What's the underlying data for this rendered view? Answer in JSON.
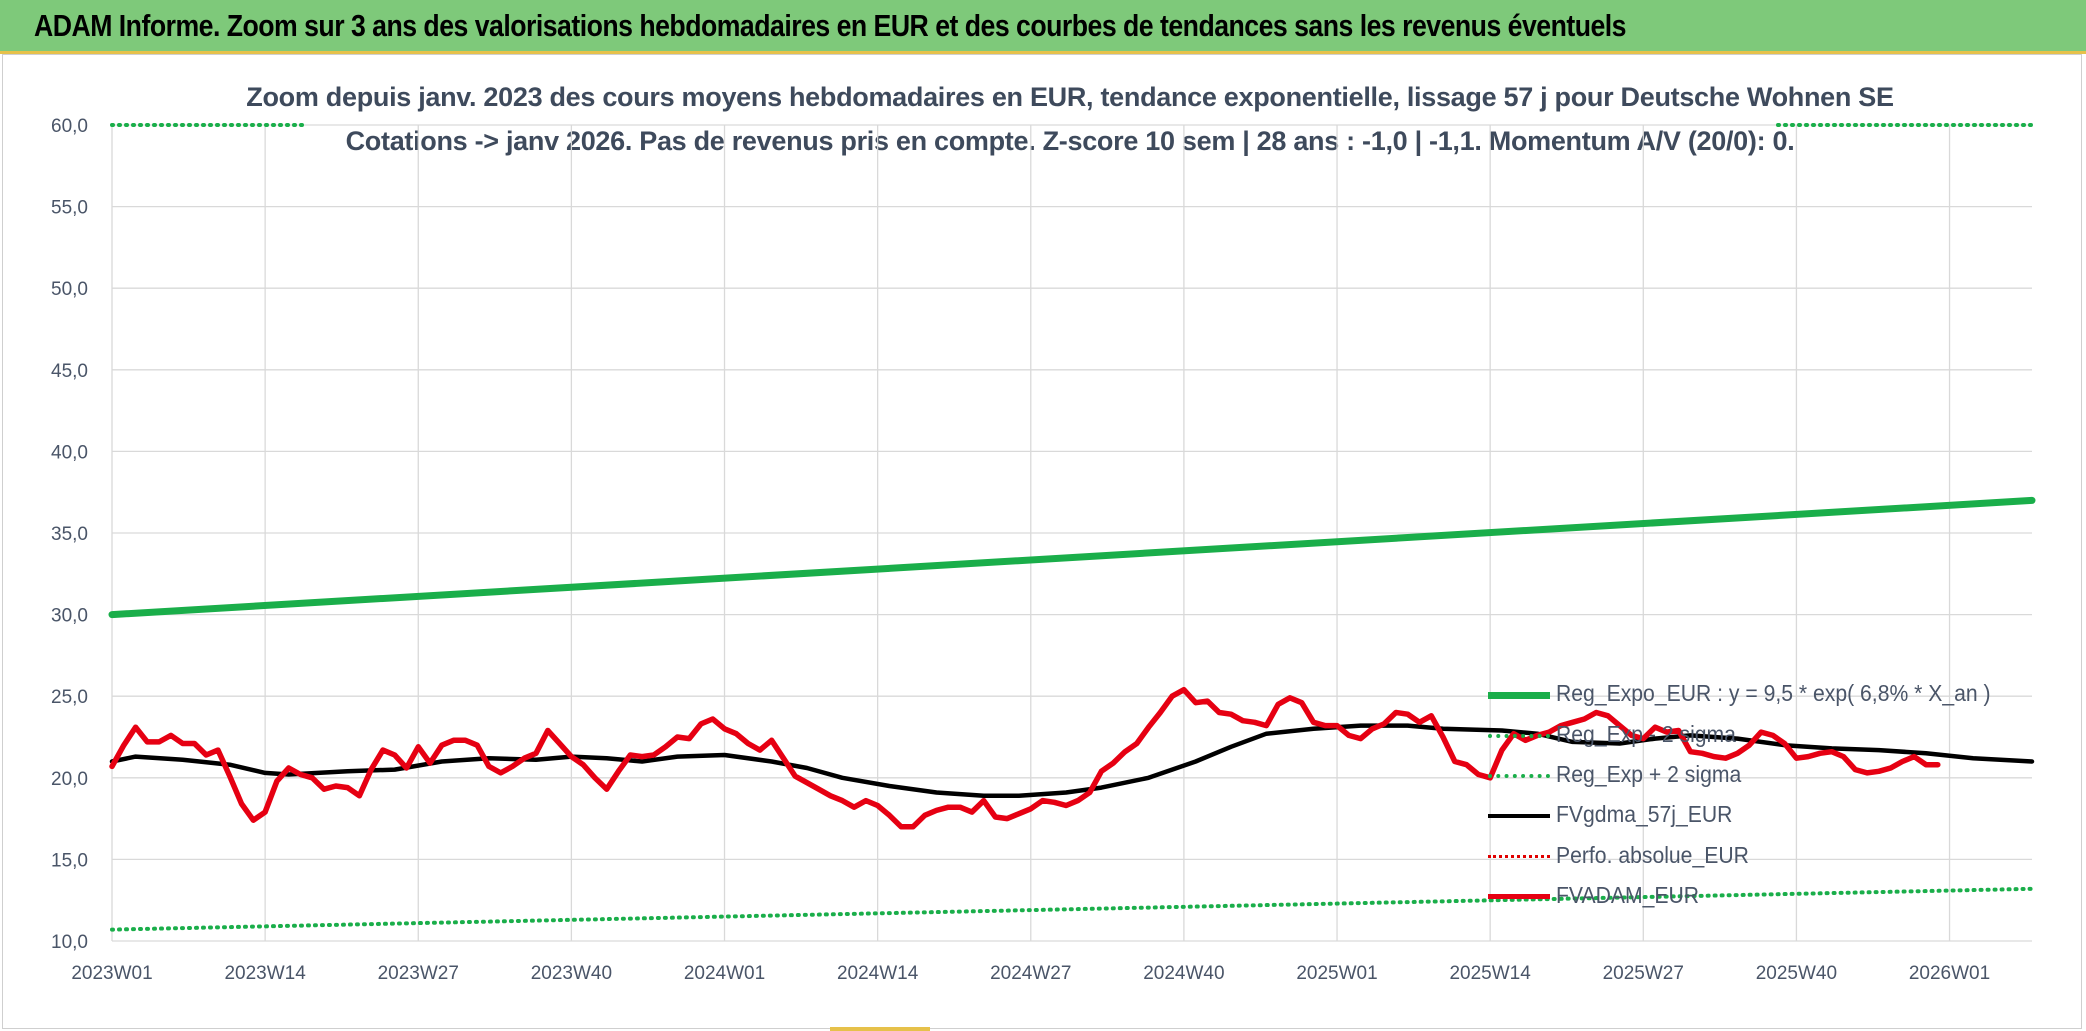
{
  "header": {
    "title": "ADAM Informe. Zoom sur 3 ans des valorisations hebdomadaires en EUR et des courbes de tendances sans les revenus éventuels"
  },
  "colors": {
    "header_bg": "#7ec97a",
    "reg_expo": "#1aae4a",
    "sigma": "#1aae4a",
    "fvgdma": "#000000",
    "perfo": "#e00000",
    "fvadam": "#e60012",
    "grid": "#d9d9d9"
  },
  "chart_data": {
    "type": "line",
    "title": "Zoom depuis janv. 2023 des cours moyens hebdomadaires en EUR, tendance exponentielle, lissage 57 j pour Deutsche Wohnen SE",
    "subtitle": "Cotations -> janv 2026. Pas de revenus pris en compte. Z-score 10 sem | 28 ans : -1,0 | -1,1. Momentum A/V (20/0): 0.",
    "xlabel": "",
    "ylabel": "",
    "ylim": [
      10,
      60
    ],
    "y_ticks": [
      "10,0",
      "15,0",
      "20,0",
      "25,0",
      "30,0",
      "35,0",
      "40,0",
      "45,0",
      "50,0",
      "55,0",
      "60,0"
    ],
    "x_ticks": [
      "2023W01",
      "2023W14",
      "2023W27",
      "2023W40",
      "2024W01",
      "2024W14",
      "2024W27",
      "2024W40",
      "2025W01",
      "2025W14",
      "2025W27",
      "2025W40",
      "2026W01"
    ],
    "n_weeks": 164,
    "grid": true,
    "legend_position": "right",
    "series": [
      {
        "name": "Reg_Expo_EUR : y = 9,5 * exp( 6,8% * X_an )",
        "style": "solid-thick-green",
        "points": [
          [
            0,
            30.0
          ],
          [
            163,
            37.0
          ]
        ]
      },
      {
        "name": "Reg_Exp - 2 sigma",
        "style": "dotted-green",
        "points": [
          [
            0,
            10.7
          ],
          [
            163,
            13.2
          ]
        ]
      },
      {
        "name": "Reg_Exp + 2 sigma",
        "style": "dotted-green",
        "points": [
          [
            0,
            60.0
          ],
          [
            163,
            60.0
          ]
        ]
      },
      {
        "name": "FVgdma_57j_EUR",
        "style": "solid-black",
        "points": [
          [
            0,
            21.0
          ],
          [
            2,
            21.3
          ],
          [
            6,
            21.1
          ],
          [
            10,
            20.8
          ],
          [
            13,
            20.3
          ],
          [
            15,
            20.2
          ],
          [
            20,
            20.4
          ],
          [
            24,
            20.5
          ],
          [
            28,
            21.0
          ],
          [
            32,
            21.2
          ],
          [
            36,
            21.1
          ],
          [
            39,
            21.3
          ],
          [
            42,
            21.2
          ],
          [
            45,
            21.0
          ],
          [
            48,
            21.3
          ],
          [
            52,
            21.4
          ],
          [
            56,
            21.0
          ],
          [
            59,
            20.6
          ],
          [
            62,
            20.0
          ],
          [
            66,
            19.5
          ],
          [
            70,
            19.1
          ],
          [
            74,
            18.9
          ],
          [
            77,
            18.9
          ],
          [
            81,
            19.1
          ],
          [
            84,
            19.4
          ],
          [
            88,
            20.0
          ],
          [
            92,
            21.0
          ],
          [
            95,
            21.9
          ],
          [
            98,
            22.7
          ],
          [
            102,
            23.0
          ],
          [
            106,
            23.2
          ],
          [
            110,
            23.2
          ],
          [
            113,
            23.0
          ],
          [
            118,
            22.9
          ],
          [
            121,
            22.7
          ],
          [
            124,
            22.2
          ],
          [
            128,
            22.1
          ],
          [
            131,
            22.4
          ],
          [
            134,
            22.6
          ],
          [
            138,
            22.4
          ],
          [
            142,
            22.0
          ],
          [
            146,
            21.8
          ],
          [
            150,
            21.7
          ],
          [
            154,
            21.5
          ],
          [
            158,
            21.2
          ],
          [
            163,
            21.0
          ]
        ]
      },
      {
        "name": "Perfo. absolue_EUR",
        "style": "dotted-red",
        "points": []
      },
      {
        "name": "FVADAM_EUR",
        "style": "solid-thick-red",
        "points": [
          [
            0,
            20.7
          ],
          [
            1,
            22.0
          ],
          [
            2,
            23.1
          ],
          [
            3,
            22.2
          ],
          [
            4,
            22.2
          ],
          [
            5,
            22.6
          ],
          [
            6,
            22.1
          ],
          [
            7,
            22.1
          ],
          [
            8,
            21.4
          ],
          [
            9,
            21.7
          ],
          [
            10,
            20.1
          ],
          [
            11,
            18.4
          ],
          [
            12,
            17.4
          ],
          [
            13,
            17.9
          ],
          [
            14,
            19.8
          ],
          [
            15,
            20.6
          ],
          [
            16,
            20.2
          ],
          [
            17,
            20.0
          ],
          [
            18,
            19.3
          ],
          [
            19,
            19.5
          ],
          [
            20,
            19.4
          ],
          [
            21,
            18.9
          ],
          [
            22,
            20.5
          ],
          [
            23,
            21.7
          ],
          [
            24,
            21.4
          ],
          [
            25,
            20.6
          ],
          [
            26,
            21.9
          ],
          [
            27,
            20.9
          ],
          [
            28,
            22.0
          ],
          [
            29,
            22.3
          ],
          [
            30,
            22.3
          ],
          [
            31,
            22.0
          ],
          [
            32,
            20.7
          ],
          [
            33,
            20.3
          ],
          [
            34,
            20.7
          ],
          [
            35,
            21.2
          ],
          [
            36,
            21.5
          ],
          [
            37,
            22.9
          ],
          [
            38,
            22.1
          ],
          [
            39,
            21.3
          ],
          [
            40,
            20.8
          ],
          [
            41,
            20.0
          ],
          [
            42,
            19.3
          ],
          [
            43,
            20.4
          ],
          [
            44,
            21.4
          ],
          [
            45,
            21.3
          ],
          [
            46,
            21.4
          ],
          [
            47,
            21.9
          ],
          [
            48,
            22.5
          ],
          [
            49,
            22.4
          ],
          [
            50,
            23.3
          ],
          [
            51,
            23.6
          ],
          [
            52,
            23.0
          ],
          [
            53,
            22.7
          ],
          [
            54,
            22.1
          ],
          [
            55,
            21.7
          ],
          [
            56,
            22.3
          ],
          [
            57,
            21.2
          ],
          [
            58,
            20.1
          ],
          [
            59,
            19.7
          ],
          [
            60,
            19.3
          ],
          [
            61,
            18.9
          ],
          [
            62,
            18.6
          ],
          [
            63,
            18.2
          ],
          [
            64,
            18.6
          ],
          [
            65,
            18.3
          ],
          [
            66,
            17.7
          ],
          [
            67,
            17.0
          ],
          [
            68,
            17.0
          ],
          [
            69,
            17.7
          ],
          [
            70,
            18.0
          ],
          [
            71,
            18.2
          ],
          [
            72,
            18.2
          ],
          [
            73,
            17.9
          ],
          [
            74,
            18.6
          ],
          [
            75,
            17.6
          ],
          [
            76,
            17.5
          ],
          [
            77,
            17.8
          ],
          [
            78,
            18.1
          ],
          [
            79,
            18.6
          ],
          [
            80,
            18.5
          ],
          [
            81,
            18.3
          ],
          [
            82,
            18.6
          ],
          [
            83,
            19.1
          ],
          [
            84,
            20.4
          ],
          [
            85,
            20.9
          ],
          [
            86,
            21.6
          ],
          [
            87,
            22.1
          ],
          [
            88,
            23.1
          ],
          [
            89,
            24.0
          ],
          [
            90,
            25.0
          ],
          [
            91,
            25.4
          ],
          [
            92,
            24.6
          ],
          [
            93,
            24.7
          ],
          [
            94,
            24.0
          ],
          [
            95,
            23.9
          ],
          [
            96,
            23.5
          ],
          [
            97,
            23.4
          ],
          [
            98,
            23.2
          ],
          [
            99,
            24.5
          ],
          [
            100,
            24.9
          ],
          [
            101,
            24.6
          ],
          [
            102,
            23.4
          ],
          [
            103,
            23.2
          ],
          [
            104,
            23.2
          ],
          [
            105,
            22.6
          ],
          [
            106,
            22.4
          ],
          [
            107,
            23.0
          ],
          [
            108,
            23.3
          ],
          [
            109,
            24.0
          ],
          [
            110,
            23.9
          ],
          [
            111,
            23.4
          ],
          [
            112,
            23.8
          ],
          [
            113,
            22.5
          ],
          [
            114,
            21.0
          ],
          [
            115,
            20.8
          ],
          [
            116,
            20.2
          ],
          [
            117,
            20.0
          ],
          [
            118,
            21.7
          ],
          [
            119,
            22.7
          ],
          [
            120,
            22.3
          ],
          [
            121,
            22.6
          ],
          [
            122,
            22.8
          ],
          [
            123,
            23.2
          ],
          [
            124,
            23.4
          ],
          [
            125,
            23.6
          ],
          [
            126,
            24.0
          ],
          [
            127,
            23.8
          ],
          [
            128,
            23.2
          ],
          [
            129,
            22.6
          ],
          [
            130,
            22.4
          ],
          [
            131,
            23.1
          ],
          [
            132,
            22.8
          ],
          [
            133,
            22.9
          ],
          [
            134,
            21.6
          ],
          [
            135,
            21.5
          ],
          [
            136,
            21.3
          ],
          [
            137,
            21.2
          ],
          [
            138,
            21.5
          ],
          [
            139,
            22.0
          ],
          [
            140,
            22.8
          ],
          [
            141,
            22.6
          ],
          [
            142,
            22.1
          ],
          [
            143,
            21.2
          ],
          [
            144,
            21.3
          ],
          [
            145,
            21.5
          ],
          [
            146,
            21.6
          ],
          [
            147,
            21.3
          ],
          [
            148,
            20.5
          ],
          [
            149,
            20.3
          ],
          [
            150,
            20.4
          ],
          [
            151,
            20.6
          ],
          [
            152,
            21.0
          ],
          [
            153,
            21.3
          ],
          [
            154,
            20.8
          ],
          [
            155,
            20.8
          ]
        ]
      }
    ]
  }
}
